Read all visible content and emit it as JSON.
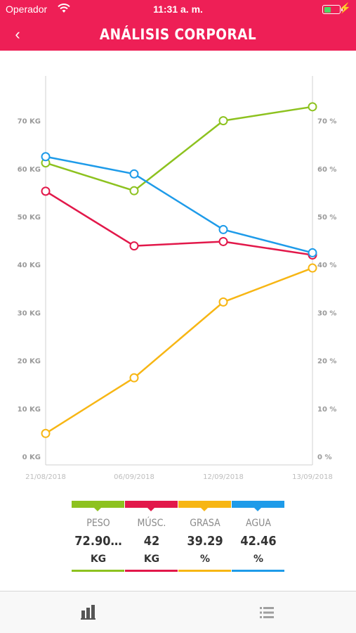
{
  "status": {
    "carrier": "Operador",
    "time": "11:31 a. m.",
    "wifi_icon": "wifi-icon",
    "battery_icon": "battery-charging-icon"
  },
  "header": {
    "title": "ANÁLISIS CORPORAL",
    "back_icon": "chevron-left-icon",
    "back_glyph": "‹"
  },
  "colors": {
    "brand": "#ee1f56",
    "peso": "#8dc21f",
    "musc": "#e2184a",
    "grasa": "#f7b614",
    "agua": "#1e9be9"
  },
  "chart_data": {
    "type": "line",
    "x": [
      "21/08/2018",
      "06/09/2018",
      "12/09/2018",
      "13/09/2018"
    ],
    "y_left": {
      "ticks": [
        "0 KG",
        "10 KG",
        "20 KG",
        "30 KG",
        "40 KG",
        "50 KG",
        "60 KG",
        "70 KG"
      ],
      "ylim": [
        0,
        80
      ]
    },
    "y_right": {
      "ticks": [
        "0 %",
        "10 %",
        "20 %",
        "30 %",
        "40 %",
        "50 %",
        "60 %",
        "70 %"
      ],
      "ylim": [
        0,
        80
      ]
    },
    "grid": false,
    "series": [
      {
        "name": "PESO",
        "color": "#8dc21f",
        "values": [
          61.2,
          55.4,
          70.0,
          72.9
        ]
      },
      {
        "name": "MÚSC.",
        "color": "#e2184a",
        "values": [
          55.3,
          43.9,
          44.8,
          42.0
        ]
      },
      {
        "name": "GRASA",
        "color": "#f7b614",
        "values": [
          4.8,
          16.4,
          32.2,
          39.29
        ]
      },
      {
        "name": "AGUA",
        "color": "#1e9be9",
        "values": [
          62.5,
          58.9,
          47.3,
          42.46
        ]
      }
    ]
  },
  "legend": [
    {
      "name": "PESO",
      "value": "72.90…",
      "unit": "KG",
      "color": "#8dc21f"
    },
    {
      "name": "MÚSC.",
      "value": "42",
      "unit": "KG",
      "color": "#e2184a"
    },
    {
      "name": "GRASA",
      "value": "39.29",
      "unit": "%",
      "color": "#f7b614"
    },
    {
      "name": "AGUA",
      "value": "42.46",
      "unit": "%",
      "color": "#1e9be9"
    }
  ],
  "tabs": [
    {
      "icon": "bar-chart-icon",
      "active": true
    },
    {
      "icon": "list-icon",
      "active": false
    }
  ]
}
